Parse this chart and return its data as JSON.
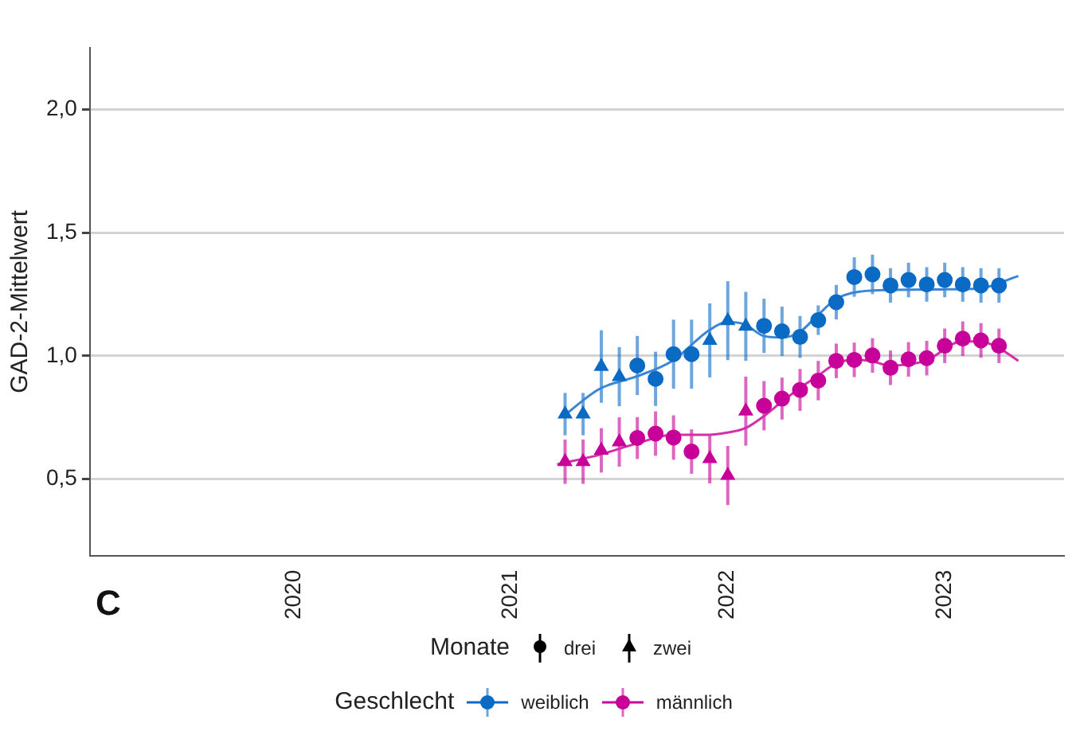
{
  "chart_data": {
    "type": "scatter",
    "ylabel": "GAD-2-Mittelwert",
    "legend_title": "Geschlecht",
    "annotations": [
      "C",
      "Monate",
      "drei",
      "zwei"
    ],
    "xlim": [
      2019.06,
      2023.55
    ],
    "xticks": [
      2020,
      2021,
      2022,
      2023
    ],
    "ylim": [
      0.19,
      2.25
    ],
    "yticks": [
      {
        "value": 0.5,
        "label": "0,5"
      },
      {
        "value": 1,
        "label": "1,0"
      },
      {
        "value": 1.5,
        "label": "1,5"
      },
      {
        "value": 2,
        "label": "2,0"
      }
    ],
    "grid": "y",
    "legend": "bottom",
    "series": [
      {
        "name": "weiblich",
        "color": "#0a6ac4",
        "marker": "circle",
        "x": [
          2021.583,
          2021.667,
          2021.75,
          2021.833,
          2022.167,
          2022.25,
          2022.333,
          2022.417,
          2022.5,
          2022.583,
          2022.667,
          2022.75,
          2022.833,
          2022.917,
          2023,
          2023.083,
          2023.167,
          2023.25
        ],
        "values": [
          0.961,
          0.907,
          1.007,
          1.007,
          1.122,
          1.1,
          1.077,
          1.145,
          1.218,
          1.32,
          1.331,
          1.286,
          1.308,
          1.29,
          1.308,
          1.29,
          1.286,
          1.286
        ],
        "errors": [
          0.12,
          0.11,
          0.14,
          0.14,
          0.11,
          0.1,
          0.085,
          0.06,
          0.07,
          0.08,
          0.08,
          0.07,
          0.07,
          0.07,
          0.07,
          0.07,
          0.07,
          0.07
        ]
      },
      {
        "color": "#0a6ac4",
        "marker": "triangle",
        "x": [
          2021.25,
          2021.333,
          2021.417,
          2021.5,
          2021.917,
          2022,
          2022.083
        ],
        "values": [
          0.764,
          0.764,
          0.957,
          0.916,
          1.063,
          1.143,
          1.12
        ],
        "errors": [
          0.086,
          0.086,
          0.147,
          0.12,
          0.15,
          0.16,
          0.14
        ]
      },
      {
        "name": "männlich",
        "color": "#c8009a",
        "marker": "circle",
        "x": [
          2021.583,
          2021.667,
          2021.75,
          2021.833,
          2022.167,
          2022.25,
          2022.333,
          2022.417,
          2022.5,
          2022.583,
          2022.667,
          2022.75,
          2022.833,
          2022.917,
          2023,
          2023.083,
          2023.167,
          2023.25
        ],
        "values": [
          0.667,
          0.685,
          0.669,
          0.612,
          0.798,
          0.827,
          0.862,
          0.9,
          0.98,
          0.984,
          1.002,
          0.952,
          0.986,
          0.991,
          1.041,
          1.07,
          1.063,
          1.041
        ],
        "errors": [
          0.085,
          0.09,
          0.09,
          0.09,
          0.1,
          0.085,
          0.085,
          0.08,
          0.07,
          0.07,
          0.07,
          0.07,
          0.07,
          0.07,
          0.07,
          0.07,
          0.07,
          0.07
        ]
      },
      {
        "color": "#c8009a",
        "marker": "triangle",
        "x": [
          2021.25,
          2021.333,
          2021.417,
          2021.5,
          2021.917,
          2022,
          2022.083
        ],
        "values": [
          0.571,
          0.571,
          0.617,
          0.651,
          0.583,
          0.515,
          0.776
        ],
        "errors": [
          0.09,
          0.09,
          0.09,
          0.1,
          0.1,
          0.12,
          0.14
        ]
      },
      {
        "type": "line",
        "color": "#3a86d6",
        "x": [
          2021.238,
          2021.408,
          2021.577,
          2021.744,
          2021.914,
          2021.997,
          2022.081,
          2022.162,
          2022.243,
          2022.326,
          2022.41,
          2022.496,
          2022.574,
          2022.743,
          2022.997,
          2023.162,
          2023.339
        ],
        "values": [
          0.753,
          0.866,
          0.916,
          0.98,
          1.104,
          1.138,
          1.127,
          1.082,
          1.075,
          1.093,
          1.161,
          1.229,
          1.256,
          1.268,
          1.27,
          1.274,
          1.324
        ]
      },
      {
        "type": "line",
        "color": "#d42fa8",
        "x": [
          2021.213,
          2021.408,
          2021.577,
          2021.744,
          2021.914,
          2021.997,
          2022.081,
          2022.162,
          2022.243,
          2022.326,
          2022.41,
          2022.496,
          2022.574,
          2022.66,
          2022.743,
          2022.911,
          2023.08,
          2023.162,
          2023.242,
          2023.339
        ],
        "values": [
          0.56,
          0.599,
          0.644,
          0.68,
          0.68,
          0.689,
          0.707,
          0.753,
          0.81,
          0.866,
          0.916,
          0.968,
          0.984,
          0.98,
          0.961,
          0.98,
          1.059,
          1.059,
          1.036,
          0.98
        ]
      }
    ]
  }
}
